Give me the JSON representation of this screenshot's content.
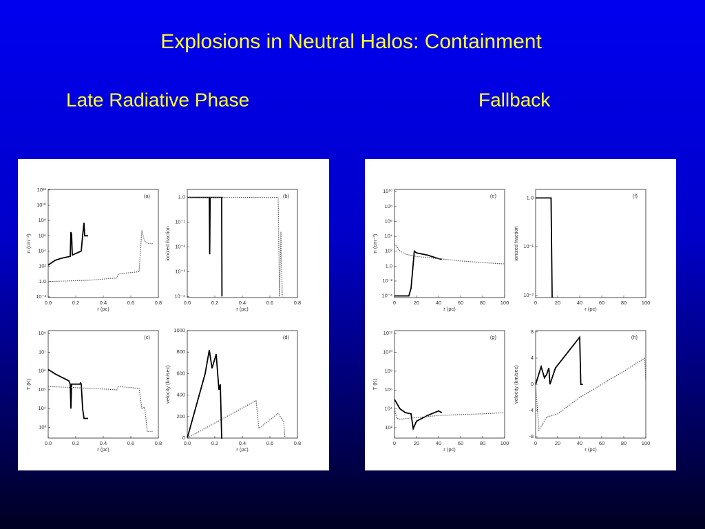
{
  "title": "Explosions in Neutral Halos:  Containment",
  "headings": [
    "Late Radiative Phase",
    "Fallback"
  ],
  "chart_data": [
    {
      "type": "line",
      "label": "(a)",
      "xlabel": "r (pc)",
      "ylabel": "n (cm⁻³)",
      "ylog": true,
      "xlim": [
        0,
        0.8
      ],
      "xticks": [
        {
          "value": 0,
          "label": "0.0"
        },
        0.2,
        0.4,
        0.6,
        0.8
      ],
      "ylim": [
        0.008,
        1200000000000.0
      ],
      "yticks": [
        {
          "value": 0.01,
          "label": "10⁻²"
        },
        {
          "value": 1,
          "label": "1.0"
        },
        {
          "value": 100,
          "label": "10²"
        },
        {
          "value": 10000,
          "label": "10⁴"
        },
        {
          "value": 1000000.0,
          "label": "10⁶"
        },
        {
          "value": 100000000.0,
          "label": "10⁸"
        },
        {
          "value": 10000000000.0,
          "label": "10¹⁰"
        },
        {
          "value": 1000000000000.0,
          "label": "10¹²"
        }
      ],
      "series": [
        {
          "color": "#000000",
          "dash": false,
          "x": [
            0,
            0.05,
            0.1,
            0.16,
            0.165,
            0.17,
            0.175,
            0.24,
            0.25,
            0.26,
            0.265,
            0.29
          ],
          "values": [
            150,
            600,
            1200,
            2000,
            3000000,
            1500000,
            3000,
            10000,
            1000000,
            50000000,
            1000000,
            1000000
          ]
        },
        {
          "color": "#555555",
          "dash": true,
          "x": [
            0,
            0.3,
            0.5,
            0.51,
            0.66,
            0.68,
            0.7,
            0.72,
            0.76
          ],
          "values": [
            1,
            1.5,
            3,
            10,
            20,
            5000000,
            200000,
            100000,
            100000
          ]
        }
      ]
    },
    {
      "type": "line",
      "label": "(b)",
      "xlabel": "r (pc)",
      "ylabel": "ionized fraction",
      "ylog": true,
      "xlim": [
        0,
        0.8
      ],
      "xticks": [
        {
          "value": 0,
          "label": "0.0"
        },
        0.2,
        0.4,
        0.6,
        0.8
      ],
      "ylim": [
        9e-05,
        2.1
      ],
      "yticks": [
        {
          "value": 0.0001,
          "label": "10⁻⁴"
        },
        {
          "value": 0.001,
          "label": "10⁻³"
        },
        {
          "value": 0.01,
          "label": "10⁻²"
        },
        {
          "value": 0.1,
          "label": "10⁻¹"
        },
        {
          "value": 1,
          "label": "1.0"
        }
      ],
      "series": [
        {
          "color": "#000000",
          "dash": false,
          "x": [
            0,
            0.16,
            0.163,
            0.166,
            0.25,
            0.252
          ],
          "values": [
            1,
            1,
            0.005,
            1,
            1,
            0.0001
          ]
        },
        {
          "color": "#555555",
          "dash": true,
          "x": [
            0,
            0.66,
            0.67,
            0.68,
            0.69
          ],
          "values": [
            1,
            1,
            0.0001,
            0.04,
            0.0001
          ]
        }
      ]
    },
    {
      "type": "line",
      "label": "(c)",
      "xlabel": "r (pc)",
      "ylabel": "T (K)",
      "ylog": true,
      "xlim": [
        0,
        0.8
      ],
      "xticks": [
        {
          "value": 0,
          "label": "0.0"
        },
        0.2,
        0.4,
        0.6,
        0.8
      ],
      "ylim": [
        270,
        140000000
      ],
      "yticks": [
        {
          "value": 1000,
          "label": "10³"
        },
        {
          "value": 10000,
          "label": "10⁴"
        },
        {
          "value": 100000,
          "label": "10⁵"
        },
        {
          "value": 1000000,
          "label": "10⁶"
        },
        {
          "value": 10000000,
          "label": "10⁷"
        },
        {
          "value": 100000000,
          "label": "10⁸"
        }
      ],
      "series": [
        {
          "color": "#000000",
          "dash": false,
          "x": [
            0,
            0.05,
            0.15,
            0.16,
            0.165,
            0.17,
            0.2,
            0.23,
            0.235,
            0.24,
            0.25,
            0.26,
            0.27,
            0.29
          ],
          "values": [
            1200000,
            700000,
            300000,
            200000,
            10000,
            200000,
            200000,
            200000,
            230000,
            200000,
            10000,
            3000,
            3000,
            3000
          ]
        },
        {
          "color": "#555555",
          "dash": true,
          "x": [
            0,
            0.3,
            0.5,
            0.51,
            0.65,
            0.66,
            0.68,
            0.7,
            0.72,
            0.76
          ],
          "values": [
            150000,
            120000,
            100000,
            150000,
            120000,
            120000,
            10000,
            12000,
            600,
            600
          ]
        }
      ]
    },
    {
      "type": "line",
      "label": "(d)",
      "xlabel": "r (pc)",
      "ylabel": "velocity (km/sec)",
      "ylog": false,
      "xlim": [
        0,
        0.8
      ],
      "xticks": [
        {
          "value": 0,
          "label": "0.0"
        },
        0.2,
        0.4,
        0.6,
        0.8
      ],
      "ylim": [
        0,
        1000
      ],
      "yticks": [
        0,
        200,
        400,
        600,
        800,
        1000
      ],
      "series": [
        {
          "color": "#000000",
          "dash": false,
          "x": [
            0,
            0.13,
            0.16,
            0.18,
            0.21,
            0.23,
            0.24,
            0.25,
            0.255
          ],
          "values": [
            0,
            600,
            820,
            650,
            780,
            450,
            500,
            0,
            0
          ]
        },
        {
          "color": "#555555",
          "dash": true,
          "x": [
            0,
            0.5,
            0.52,
            0.66,
            0.7,
            0.71
          ],
          "values": [
            0,
            350,
            90,
            230,
            150,
            0
          ]
        }
      ]
    },
    {
      "type": "line",
      "label": "(e)",
      "xlabel": "r (pc)",
      "ylabel": "n (cm⁻³)",
      "ylog": true,
      "xlim": [
        0,
        100
      ],
      "xticks": [
        0,
        20,
        40,
        60,
        80,
        100
      ],
      "ylim": [
        6e-05,
        20000000000
      ],
      "yticks": [
        {
          "value": 0.0001,
          "label": "10⁻⁴"
        },
        {
          "value": 0.01,
          "label": "10⁻²"
        },
        {
          "value": 1,
          "label": "1.0"
        },
        {
          "value": 100,
          "label": "10²"
        },
        {
          "value": 10000,
          "label": "10⁴"
        },
        {
          "value": 1000000,
          "label": "10⁶"
        },
        {
          "value": 100000000,
          "label": "10⁸"
        },
        {
          "value": 10000000000,
          "label": "10¹⁰"
        }
      ],
      "series": [
        {
          "color": "#000000",
          "dash": false,
          "x": [
            0,
            13,
            15,
            18,
            20,
            30,
            40,
            43
          ],
          "values": [
            0.0001,
            0.0001,
            0.001,
            100,
            60,
            30,
            10,
            8
          ]
        },
        {
          "color": "#555555",
          "dash": true,
          "x": [
            0,
            5,
            10,
            20,
            40,
            60,
            80,
            100
          ],
          "values": [
            1000,
            100,
            40,
            20,
            10,
            5,
            3,
            2
          ]
        }
      ]
    },
    {
      "type": "line",
      "label": "(f)",
      "xlabel": "r (pc)",
      "ylabel": "ionized fraction",
      "ylog": true,
      "xlim": [
        0,
        100
      ],
      "xticks": [
        0,
        20,
        40,
        60,
        80,
        100
      ],
      "ylim": [
        0.009,
        1.5
      ],
      "yticks": [
        {
          "value": 0.01,
          "label": "10⁻²"
        },
        {
          "value": 0.1,
          "label": "10⁻¹"
        },
        {
          "value": 1,
          "label": "1.0"
        }
      ],
      "series": [
        {
          "color": "#000000",
          "dash": false,
          "x": [
            0,
            14,
            15
          ],
          "values": [
            1,
            1,
            0.009
          ]
        }
      ]
    },
    {
      "type": "line",
      "label": "(g)",
      "xlabel": "r (pc)",
      "ylabel": "T (K)",
      "ylog": true,
      "xlim": [
        0,
        100
      ],
      "xticks": [
        0,
        20,
        40,
        60,
        80,
        100
      ],
      "ylim": [
        8,
        2000000000000
      ],
      "yticks": [
        {
          "value": 100,
          "label": "10²"
        },
        {
          "value": 10000,
          "label": "10⁴"
        },
        {
          "value": 1000000,
          "label": "10⁶"
        },
        {
          "value": 100000000,
          "label": "10⁸"
        },
        {
          "value": 10000000000,
          "label": "10¹⁰"
        },
        {
          "value": 1000000000000,
          "label": "10¹²"
        }
      ],
      "series": [
        {
          "color": "#000000",
          "dash": false,
          "x": [
            0,
            5,
            10,
            15,
            17,
            20,
            30,
            40,
            43
          ],
          "values": [
            100000,
            10000,
            4000,
            3000,
            80,
            500,
            2000,
            6000,
            4000
          ]
        },
        {
          "color": "#555555",
          "dash": true,
          "x": [
            0,
            2,
            5,
            20,
            40,
            60,
            80,
            100
          ],
          "values": [
            10000,
            1000,
            800,
            1200,
            2000,
            2500,
            3000,
            4000
          ]
        }
      ]
    },
    {
      "type": "line",
      "label": "(h)",
      "xlabel": "r (pc)",
      "ylabel": "velocity (km/sec)",
      "ylog": false,
      "xlim": [
        0,
        100
      ],
      "xticks": [
        0,
        20,
        40,
        60,
        80,
        100
      ],
      "ylim": [
        -8.2,
        8.2
      ],
      "yticks": [
        -8,
        -4,
        0,
        4,
        8
      ],
      "series": [
        {
          "color": "#000000",
          "dash": false,
          "x": [
            0,
            5,
            8,
            10,
            12,
            13,
            18,
            40,
            41,
            43
          ],
          "values": [
            0,
            2.7,
            1,
            1.5,
            2.5,
            0,
            2.5,
            7.2,
            0,
            0
          ]
        },
        {
          "color": "#555555",
          "dash": true,
          "x": [
            0,
            3,
            10,
            20,
            40,
            60,
            80,
            99,
            100
          ],
          "values": [
            0,
            -7,
            -5,
            -4.5,
            -2,
            0,
            2,
            4,
            0.5
          ]
        }
      ]
    }
  ]
}
